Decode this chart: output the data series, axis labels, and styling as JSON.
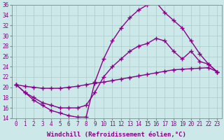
{
  "xlabel": "Windchill (Refroidissement éolien,°C)",
  "ylabel": "",
  "xlim": [
    -0.5,
    23.5
  ],
  "ylim": [
    14,
    36
  ],
  "bg_color": "#cce8e8",
  "line_color": "#880088",
  "grid_color": "#aacccc",
  "line1_x": [
    0,
    1,
    2,
    3,
    4,
    5,
    6,
    7,
    8,
    9,
    10,
    11,
    12,
    13,
    14,
    15,
    16,
    17,
    18,
    19,
    20,
    21,
    22,
    23
  ],
  "line1_y": [
    20.5,
    19.0,
    17.5,
    16.5,
    15.5,
    15.0,
    14.5,
    14.2,
    14.2,
    21.0,
    25.5,
    29.0,
    31.5,
    33.5,
    35.0,
    36.0,
    36.5,
    34.5,
    33.0,
    31.5,
    29.0,
    26.5,
    24.5,
    23.0
  ],
  "line2_x": [
    0,
    1,
    2,
    3,
    4,
    5,
    6,
    7,
    8,
    9,
    10,
    11,
    12,
    13,
    14,
    15,
    16,
    17,
    18,
    19,
    20,
    21,
    22,
    23
  ],
  "line2_y": [
    20.5,
    20.2,
    20.0,
    19.8,
    19.8,
    19.8,
    20.0,
    20.2,
    20.5,
    20.8,
    21.0,
    21.3,
    21.6,
    21.9,
    22.2,
    22.5,
    22.8,
    23.1,
    23.4,
    23.5,
    23.6,
    23.7,
    23.8,
    23.0
  ],
  "line3_x": [
    0,
    1,
    2,
    3,
    4,
    5,
    6,
    7,
    8,
    9,
    10,
    11,
    12,
    13,
    14,
    15,
    16,
    17,
    18,
    19,
    20,
    21,
    22,
    23
  ],
  "line3_y": [
    20.5,
    19.0,
    18.0,
    17.0,
    16.5,
    16.0,
    16.0,
    16.0,
    16.5,
    19.0,
    22.0,
    24.0,
    25.5,
    27.0,
    28.0,
    28.5,
    29.5,
    29.0,
    27.0,
    25.5,
    27.0,
    25.0,
    24.5,
    23.0
  ],
  "marker": "+",
  "markersize": 4,
  "linewidth": 1.0,
  "font_family": "monospace",
  "tick_fontsize": 5.5,
  "xlabel_fontsize": 6.5
}
